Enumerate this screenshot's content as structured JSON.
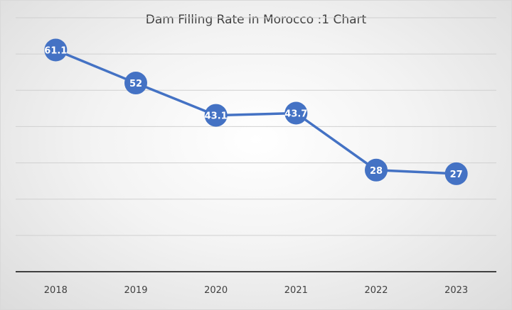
{
  "chart_data": {
    "type": "line",
    "title": "Dam Filling Rate in Morocco :1 Chart",
    "categories": [
      "2018",
      "2019",
      "2020",
      "2021",
      "2022",
      "2023"
    ],
    "series": [
      {
        "values": [
          61.1,
          52,
          43.1,
          43.7,
          28,
          27
        ]
      }
    ],
    "data_labels": [
      "61.1",
      "52",
      "43.1",
      "43.7",
      "28",
      "27"
    ],
    "ylim": [
      0,
      70
    ],
    "grid": true,
    "y_tick_labels_shown": false,
    "marker": "circle",
    "line_color": "#4472c4",
    "gridline_color": "#d0d0d0",
    "axis_color": "#404040"
  }
}
